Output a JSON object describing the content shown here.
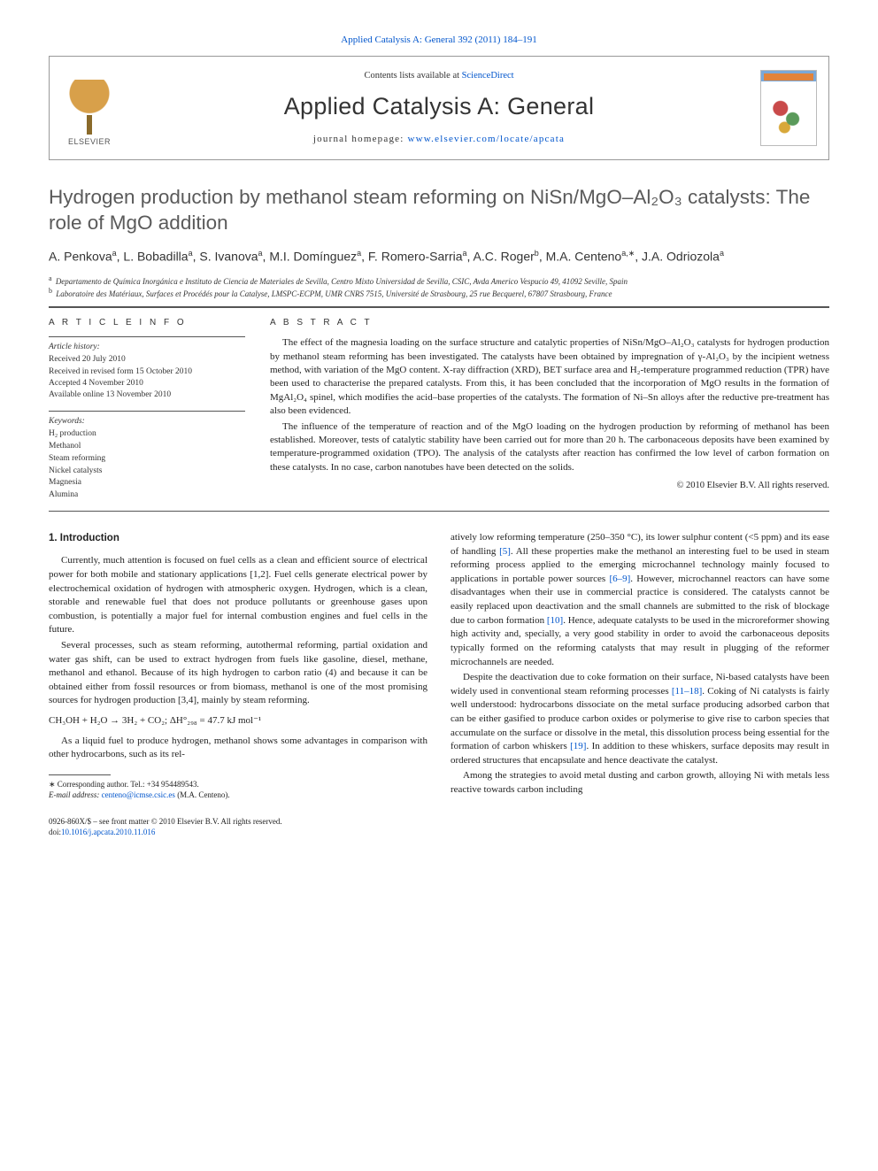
{
  "top_link": {
    "journal": "Applied Catalysis A: General",
    "cite": "392 (2011) 184–191"
  },
  "header": {
    "contents_prefix": "Contents lists available at ",
    "contents_link": "ScienceDirect",
    "journal_title": "Applied Catalysis A: General",
    "homepage_prefix": "journal homepage: ",
    "homepage_url": "www.elsevier.com/locate/apcata",
    "elsevier": "ELSEVIER"
  },
  "article": {
    "title": "Hydrogen production by methanol steam reforming on NiSn/MgO–Al₂O₃ catalysts: The role of MgO addition",
    "authors_html": "A. Penkova<sup>a</sup>, L. Bobadilla<sup>a</sup>, S. Ivanova<sup>a</sup>, M.I. Domínguez<sup>a</sup>, F. Romero-Sarria<sup>a</sup>, A.C. Roger<sup>b</sup>, M.A. Centeno<sup>a,∗</sup>, J.A. Odriozola<sup>a</sup>",
    "affiliations": {
      "a": "Departamento de Química Inorgánica e Instituto de Ciencia de Materiales de Sevilla, Centro Mixto Universidad de Sevilla, CSIC, Avda Americo Vespucio 49, 41092 Seville, Spain",
      "b": "Laboratoire des Matériaux, Surfaces et Procédés pour la Catalyse, LMSPC-ECPM, UMR CNRS 7515, Université de Strasbourg, 25 rue Becquerel, 67807 Strasbourg, France"
    }
  },
  "article_info": {
    "heading": "A R T I C L E   I N F O",
    "history_title": "Article history:",
    "history": [
      "Received 20 July 2010",
      "Received in revised form 15 October 2010",
      "Accepted 4 November 2010",
      "Available online 13 November 2010"
    ],
    "keywords_title": "Keywords:",
    "keywords": [
      "H₂ production",
      "Methanol",
      "Steam reforming",
      "Nickel catalysts",
      "Magnesia",
      "Alumina"
    ]
  },
  "abstract": {
    "heading": "A B S T R A C T",
    "p1": "The effect of the magnesia loading on the surface structure and catalytic properties of NiSn/MgO–Al₂O₃ catalysts for hydrogen production by methanol steam reforming has been investigated. The catalysts have been obtained by impregnation of γ-Al₂O₃ by the incipient wetness method, with variation of the MgO content. X-ray diffraction (XRD), BET surface area and H₂-temperature programmed reduction (TPR) have been used to characterise the prepared catalysts. From this, it has been concluded that the incorporation of MgO results in the formation of MgAl₂O₄ spinel, which modifies the acid–base properties of the catalysts. The formation of Ni–Sn alloys after the reductive pre-treatment has also been evidenced.",
    "p2": "The influence of the temperature of reaction and of the MgO loading on the hydrogen production by reforming of methanol has been established. Moreover, tests of catalytic stability have been carried out for more than 20 h. The carbonaceous deposits have been examined by temperature-programmed oxidation (TPO). The analysis of the catalysts after reaction has confirmed the low level of carbon formation on these catalysts. In no case, carbon nanotubes have been detected on the solids.",
    "copyright": "© 2010 Elsevier B.V. All rights reserved."
  },
  "body": {
    "section1_heading": "1. Introduction",
    "p1": "Currently, much attention is focused on fuel cells as a clean and efficient source of electrical power for both mobile and stationary applications [1,2]. Fuel cells generate electrical power by electrochemical oxidation of hydrogen with atmospheric oxygen. Hydrogen, which is a clean, storable and renewable fuel that does not produce pollutants or greenhouse gases upon combustion, is potentially a major fuel for internal combustion engines and fuel cells in the future.",
    "p2": "Several processes, such as steam reforming, autothermal reforming, partial oxidation and water gas shift, can be used to extract hydrogen from fuels like gasoline, diesel, methane, methanol and ethanol. Because of its high hydrogen to carbon ratio (4) and because it can be obtained either from fossil resources or from biomass, methanol is one of the most promising sources for hydrogen production [3,4], mainly by steam reforming.",
    "equation": "CH₃OH + H₂O → 3H₂ + CO₂;    ΔH°₂₉₈ = 47.7 kJ mol⁻¹",
    "p3": "As a liquid fuel to produce hydrogen, methanol shows some advantages in comparison with other hydrocarbons, such as its rel-",
    "p4a": "atively low reforming temperature (250–350 °C), its lower sulphur content (<5 ppm) and its ease of handling ",
    "p4b": ". All these properties make the methanol an interesting fuel to be used in steam reforming process applied to the emerging microchannel technology mainly focused to applications in portable power sources ",
    "p4c": ". However, microchannel reactors can have some disadvantages when their use in commercial practice is considered. The catalysts cannot be easily replaced upon deactivation and the small channels are submitted to the risk of blockage due to carbon formation ",
    "p4d": ". Hence, adequate catalysts to be used in the microreformer showing high activity and, specially, a very good stability in order to avoid the carbonaceous deposits typically formed on the reforming catalysts that may result in plugging of the reformer microchannels are needed.",
    "ref5": "[5]",
    "ref69": "[6–9]",
    "ref10": "[10]",
    "p5a": "Despite the deactivation due to coke formation on their surface, Ni-based catalysts have been widely used in conventional steam reforming processes ",
    "ref1118": "[11–18]",
    "p5b": ". Coking of Ni catalysts is fairly well understood: hydrocarbons dissociate on the metal surface producing adsorbed carbon that can be either gasified to produce carbon oxides or polymerise to give rise to carbon species that accumulate on the surface or dissolve in the metal, this dissolution process being essential for the formation of carbon whiskers ",
    "ref19": "[19]",
    "p5c": ". In addition to these whiskers, surface deposits may result in ordered structures that encapsulate and hence deactivate the catalyst.",
    "p6": "Among the strategies to avoid metal dusting and carbon growth, alloying Ni with metals less reactive towards carbon including"
  },
  "footnotes": {
    "corr": "∗ Corresponding author. Tel.: +34 954489543.",
    "email_label": "E-mail address: ",
    "email": "centeno@icmse.csic.es",
    "email_who": " (M.A. Centeno)."
  },
  "footer": {
    "front": "0926-860X/$ – see front matter © 2010 Elsevier B.V. All rights reserved.",
    "doi": "doi:10.1016/j.apcata.2010.11.016"
  },
  "colors": {
    "link": "#0055cc",
    "text": "#333333",
    "rule": "#555555"
  }
}
